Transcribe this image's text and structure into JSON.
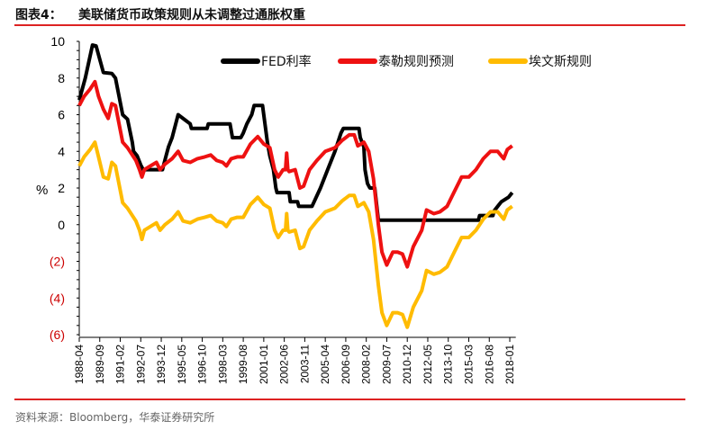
{
  "header": {
    "figure_label": "图表4：",
    "title": "美联储货币政策规则从未调整过通胀权重"
  },
  "footer": {
    "source": "资料来源：Bloomberg，华泰证券研究所"
  },
  "colors": {
    "accent": "#d22222",
    "fed": "#000000",
    "taylor": "#ee1111",
    "evans": "#ffbb00",
    "negative_label": "#cc0000"
  },
  "chart_data": {
    "type": "line",
    "title": "",
    "ylabel": "%",
    "xlabel": "",
    "ylim": [
      -6,
      10
    ],
    "yticks": [
      10,
      8,
      6,
      4,
      2,
      0,
      -2,
      -4,
      -6
    ],
    "ytick_labels": [
      "10",
      "8",
      "6",
      "4",
      "2",
      "0",
      "(2)",
      "(4)",
      "(6)"
    ],
    "xticks": [
      "1988-04",
      "1989-09",
      "1991-02",
      "1992-07",
      "1993-12",
      "1995-05",
      "1996-10",
      "1998-03",
      "1999-08",
      "2001-01",
      "2002-06",
      "2003-11",
      "2005-04",
      "2006-09",
      "2008-02",
      "2009-07",
      "2010-12",
      "2012-05",
      "2013-10",
      "2015-03",
      "2016-08",
      "2018-01"
    ],
    "xlim": [
      "1988-04",
      "2018-03"
    ],
    "grid": false,
    "legend_placement": "top",
    "series": [
      {
        "name": "FED利率",
        "color": "#000000",
        "points": [
          [
            "1988-04",
            6.8
          ],
          [
            "1988-09",
            8.0
          ],
          [
            "1989-03",
            9.8
          ],
          [
            "1989-06",
            9.75
          ],
          [
            "1989-12",
            8.3
          ],
          [
            "1990-07",
            8.25
          ],
          [
            "1990-10",
            8.0
          ],
          [
            "1991-01",
            7.0
          ],
          [
            "1991-04",
            6.0
          ],
          [
            "1991-08",
            5.75
          ],
          [
            "1991-12",
            4.5
          ],
          [
            "1992-01",
            4.0
          ],
          [
            "1992-04",
            3.75
          ],
          [
            "1992-07",
            3.25
          ],
          [
            "1992-09",
            3.0
          ],
          [
            "1994-01",
            3.0
          ],
          [
            "1994-02",
            3.25
          ],
          [
            "1994-04",
            3.75
          ],
          [
            "1994-06",
            4.25
          ],
          [
            "1994-09",
            4.75
          ],
          [
            "1994-12",
            5.5
          ],
          [
            "1995-02",
            6.0
          ],
          [
            "1995-07",
            5.75
          ],
          [
            "1995-12",
            5.5
          ],
          [
            "1996-01",
            5.25
          ],
          [
            "1997-02",
            5.25
          ],
          [
            "1997-03",
            5.5
          ],
          [
            "1998-09",
            5.5
          ],
          [
            "1998-11",
            4.75
          ],
          [
            "1999-06",
            4.75
          ],
          [
            "1999-08",
            5.0
          ],
          [
            "1999-11",
            5.5
          ],
          [
            "2000-03",
            6.0
          ],
          [
            "2000-05",
            6.5
          ],
          [
            "2000-12",
            6.5
          ],
          [
            "2001-02",
            5.5
          ],
          [
            "2001-04",
            4.5
          ],
          [
            "2001-06",
            3.75
          ],
          [
            "2001-09",
            3.0
          ],
          [
            "2001-11",
            2.0
          ],
          [
            "2001-12",
            1.75
          ],
          [
            "2002-10",
            1.75
          ],
          [
            "2002-11",
            1.25
          ],
          [
            "2003-05",
            1.25
          ],
          [
            "2003-06",
            1.0
          ],
          [
            "2004-05",
            1.0
          ],
          [
            "2004-12",
            2.0
          ],
          [
            "2005-06",
            3.0
          ],
          [
            "2005-12",
            4.0
          ],
          [
            "2006-05",
            5.0
          ],
          [
            "2006-07",
            5.25
          ],
          [
            "2007-08",
            5.25
          ],
          [
            "2007-09",
            4.75
          ],
          [
            "2007-12",
            4.25
          ],
          [
            "2008-01",
            3.0
          ],
          [
            "2008-03",
            2.25
          ],
          [
            "2008-05",
            2.0
          ],
          [
            "2008-09",
            2.0
          ],
          [
            "2008-12",
            0.25
          ],
          [
            "2015-11",
            0.25
          ],
          [
            "2015-12",
            0.5
          ],
          [
            "2016-11",
            0.5
          ],
          [
            "2016-12",
            0.75
          ],
          [
            "2017-03",
            1.0
          ],
          [
            "2017-06",
            1.25
          ],
          [
            "2017-12",
            1.5
          ],
          [
            "2018-03",
            1.75
          ]
        ]
      },
      {
        "name": "泰勒规则预测",
        "color": "#ee1111",
        "points": [
          [
            "1988-04",
            6.5
          ],
          [
            "1988-08",
            7.0
          ],
          [
            "1989-01",
            7.4
          ],
          [
            "1989-05",
            7.8
          ],
          [
            "1989-08",
            7.0
          ],
          [
            "1989-12",
            6.3
          ],
          [
            "1990-04",
            5.8
          ],
          [
            "1990-07",
            6.6
          ],
          [
            "1990-10",
            6.5
          ],
          [
            "1991-01",
            5.5
          ],
          [
            "1991-04",
            4.5
          ],
          [
            "1991-08",
            4.2
          ],
          [
            "1991-12",
            3.8
          ],
          [
            "1992-03",
            3.5
          ],
          [
            "1992-06",
            3.0
          ],
          [
            "1992-08",
            2.6
          ],
          [
            "1992-10",
            3.0
          ],
          [
            "1993-03",
            3.2
          ],
          [
            "1993-08",
            3.4
          ],
          [
            "1993-11",
            3.0
          ],
          [
            "1994-03",
            3.3
          ],
          [
            "1994-09",
            3.6
          ],
          [
            "1995-02",
            4.0
          ],
          [
            "1995-06",
            3.5
          ],
          [
            "1995-12",
            3.4
          ],
          [
            "1996-06",
            3.6
          ],
          [
            "1996-12",
            3.7
          ],
          [
            "1997-05",
            3.8
          ],
          [
            "1997-10",
            3.5
          ],
          [
            "1998-03",
            3.4
          ],
          [
            "1998-06",
            3.2
          ],
          [
            "1998-10",
            3.6
          ],
          [
            "1999-03",
            3.7
          ],
          [
            "1999-08",
            3.7
          ],
          [
            "2000-02",
            4.4
          ],
          [
            "2000-08",
            4.8
          ],
          [
            "2001-01",
            4.4
          ],
          [
            "2001-06",
            4.2
          ],
          [
            "2001-10",
            3.0
          ],
          [
            "2002-01",
            2.6
          ],
          [
            "2002-05",
            3.0
          ],
          [
            "2002-07",
            3.0
          ],
          [
            "2002-08",
            3.9
          ],
          [
            "2002-09",
            3.0
          ],
          [
            "2002-10",
            2.9
          ],
          [
            "2003-03",
            3.0
          ],
          [
            "2003-07",
            2.0
          ],
          [
            "2003-10",
            2.1
          ],
          [
            "2004-03",
            3.0
          ],
          [
            "2004-09",
            3.5
          ],
          [
            "2005-04",
            4.0
          ],
          [
            "2005-12",
            4.2
          ],
          [
            "2006-06",
            4.6
          ],
          [
            "2006-12",
            4.9
          ],
          [
            "2007-04",
            4.9
          ],
          [
            "2007-07",
            4.3
          ],
          [
            "2007-12",
            4.5
          ],
          [
            "2008-04",
            4.0
          ],
          [
            "2008-08",
            2.5
          ],
          [
            "2008-12",
            0.0
          ],
          [
            "2009-03",
            -1.5
          ],
          [
            "2009-07",
            -2.2
          ],
          [
            "2009-12",
            -1.5
          ],
          [
            "2010-04",
            -1.5
          ],
          [
            "2010-08",
            -1.6
          ],
          [
            "2010-12",
            -2.3
          ],
          [
            "2011-05",
            -1.2
          ],
          [
            "2011-12",
            -0.3
          ],
          [
            "2012-04",
            0.8
          ],
          [
            "2012-10",
            0.6
          ],
          [
            "2013-03",
            0.7
          ],
          [
            "2013-09",
            1.0
          ],
          [
            "2014-03",
            1.8
          ],
          [
            "2014-09",
            2.6
          ],
          [
            "2015-03",
            2.6
          ],
          [
            "2015-09",
            3.0
          ],
          [
            "2016-03",
            3.6
          ],
          [
            "2016-09",
            4.0
          ],
          [
            "2017-03",
            4.0
          ],
          [
            "2017-08",
            3.6
          ],
          [
            "2017-11",
            4.1
          ],
          [
            "2018-03",
            4.3
          ]
        ]
      },
      {
        "name": "埃文斯规则",
        "color": "#ffbb00",
        "points": [
          [
            "1988-04",
            3.2
          ],
          [
            "1988-08",
            3.7
          ],
          [
            "1989-01",
            4.1
          ],
          [
            "1989-05",
            4.5
          ],
          [
            "1989-08",
            3.7
          ],
          [
            "1989-12",
            2.6
          ],
          [
            "1990-04",
            2.5
          ],
          [
            "1990-07",
            3.4
          ],
          [
            "1990-10",
            3.2
          ],
          [
            "1991-01",
            2.2
          ],
          [
            "1991-04",
            1.2
          ],
          [
            "1991-08",
            0.9
          ],
          [
            "1991-12",
            0.5
          ],
          [
            "1992-03",
            0.2
          ],
          [
            "1992-06",
            -0.3
          ],
          [
            "1992-08",
            -0.8
          ],
          [
            "1992-10",
            -0.3
          ],
          [
            "1993-03",
            -0.1
          ],
          [
            "1993-08",
            0.1
          ],
          [
            "1993-11",
            -0.3
          ],
          [
            "1994-03",
            0.0
          ],
          [
            "1994-09",
            0.3
          ],
          [
            "1995-02",
            0.7
          ],
          [
            "1995-06",
            0.2
          ],
          [
            "1995-12",
            0.1
          ],
          [
            "1996-06",
            0.3
          ],
          [
            "1996-12",
            0.4
          ],
          [
            "1997-05",
            0.5
          ],
          [
            "1997-10",
            0.2
          ],
          [
            "1998-03",
            0.1
          ],
          [
            "1998-06",
            -0.1
          ],
          [
            "1998-10",
            0.3
          ],
          [
            "1999-03",
            0.4
          ],
          [
            "1999-08",
            0.4
          ],
          [
            "2000-02",
            1.1
          ],
          [
            "2000-08",
            1.5
          ],
          [
            "2001-01",
            1.1
          ],
          [
            "2001-06",
            0.9
          ],
          [
            "2001-10",
            -0.3
          ],
          [
            "2002-01",
            -0.7
          ],
          [
            "2002-05",
            -0.3
          ],
          [
            "2002-07",
            -0.3
          ],
          [
            "2002-08",
            0.6
          ],
          [
            "2002-09",
            -0.3
          ],
          [
            "2002-10",
            -0.4
          ],
          [
            "2003-03",
            -0.3
          ],
          [
            "2003-07",
            -1.3
          ],
          [
            "2003-10",
            -1.2
          ],
          [
            "2004-03",
            -0.3
          ],
          [
            "2004-09",
            0.2
          ],
          [
            "2005-04",
            0.7
          ],
          [
            "2005-12",
            0.9
          ],
          [
            "2006-06",
            1.3
          ],
          [
            "2006-12",
            1.6
          ],
          [
            "2007-04",
            1.6
          ],
          [
            "2007-07",
            1.0
          ],
          [
            "2007-12",
            1.2
          ],
          [
            "2008-04",
            0.7
          ],
          [
            "2008-08",
            -0.8
          ],
          [
            "2008-12",
            -3.3
          ],
          [
            "2009-03",
            -4.8
          ],
          [
            "2009-07",
            -5.5
          ],
          [
            "2009-12",
            -4.8
          ],
          [
            "2010-04",
            -4.8
          ],
          [
            "2010-08",
            -4.9
          ],
          [
            "2010-12",
            -5.6
          ],
          [
            "2011-05",
            -4.5
          ],
          [
            "2011-12",
            -3.6
          ],
          [
            "2012-04",
            -2.5
          ],
          [
            "2012-10",
            -2.7
          ],
          [
            "2013-03",
            -2.6
          ],
          [
            "2013-09",
            -2.3
          ],
          [
            "2014-03",
            -1.5
          ],
          [
            "2014-09",
            -0.7
          ],
          [
            "2015-03",
            -0.7
          ],
          [
            "2015-09",
            -0.3
          ],
          [
            "2016-03",
            0.3
          ],
          [
            "2016-09",
            0.7
          ],
          [
            "2017-03",
            0.7
          ],
          [
            "2017-08",
            0.3
          ],
          [
            "2017-11",
            0.8
          ],
          [
            "2018-03",
            1.0
          ]
        ]
      }
    ]
  }
}
